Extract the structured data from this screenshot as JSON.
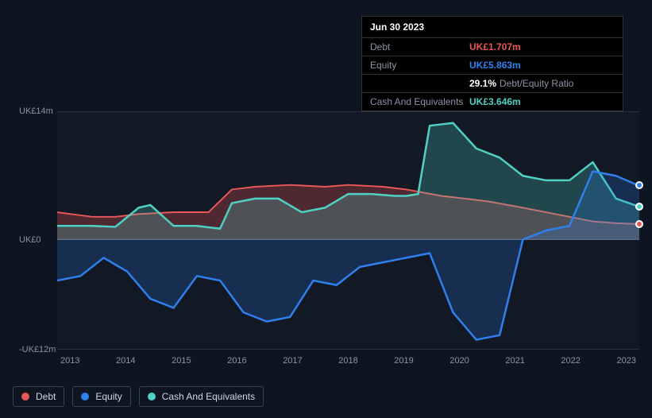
{
  "tooltip": {
    "date": "Jun 30 2023",
    "rows": [
      {
        "label": "Debt",
        "value": "UK£1.707m",
        "color": "#eb5757"
      },
      {
        "label": "Equity",
        "value": "UK£5.863m",
        "color": "#2f80ed"
      }
    ],
    "ratio": {
      "value": "29.1%",
      "label": "Debt/Equity Ratio"
    },
    "cash": {
      "label": "Cash And Equivalents",
      "value": "UK£3.646m",
      "color": "#4fd1c5"
    }
  },
  "chart": {
    "type": "area",
    "y_max": 14,
    "y_min": -12,
    "y_labels": [
      {
        "text": "UK£14m",
        "value": 14
      },
      {
        "text": "UK£0",
        "value": 0
      },
      {
        "text": "-UK£12m",
        "value": -12
      }
    ],
    "x_labels": [
      "2013",
      "2014",
      "2015",
      "2016",
      "2017",
      "2018",
      "2019",
      "2020",
      "2021",
      "2022",
      "2023"
    ],
    "plot_bg": "#141b2b",
    "grid_color": "#2a3244",
    "zero_line_color": "#5a6478",
    "label_color": "#8a94a6",
    "label_fontsize": 11,
    "series": {
      "debt": {
        "label": "Debt",
        "color": "#eb5757",
        "fill_opacity": 0.28,
        "stroke_width": 2,
        "data": [
          [
            0.0,
            3.0
          ],
          [
            0.06,
            2.5
          ],
          [
            0.1,
            2.5
          ],
          [
            0.14,
            2.8
          ],
          [
            0.2,
            3.0
          ],
          [
            0.26,
            3.0
          ],
          [
            0.3,
            5.5
          ],
          [
            0.34,
            5.8
          ],
          [
            0.4,
            6.0
          ],
          [
            0.46,
            5.8
          ],
          [
            0.5,
            6.0
          ],
          [
            0.56,
            5.8
          ],
          [
            0.6,
            5.5
          ],
          [
            0.66,
            4.8
          ],
          [
            0.7,
            4.5
          ],
          [
            0.74,
            4.2
          ],
          [
            0.8,
            3.5
          ],
          [
            0.84,
            3.0
          ],
          [
            0.88,
            2.5
          ],
          [
            0.92,
            2.0
          ],
          [
            0.96,
            1.8
          ],
          [
            1.0,
            1.7
          ]
        ],
        "marker_last": true
      },
      "equity": {
        "label": "Equity",
        "color": "#2f80ed",
        "fill_opacity": 0.22,
        "stroke_width": 2.5,
        "data": [
          [
            0.0,
            -4.5
          ],
          [
            0.04,
            -4.0
          ],
          [
            0.08,
            -2.0
          ],
          [
            0.12,
            -3.5
          ],
          [
            0.16,
            -6.5
          ],
          [
            0.2,
            -7.5
          ],
          [
            0.24,
            -4.0
          ],
          [
            0.28,
            -4.5
          ],
          [
            0.32,
            -8.0
          ],
          [
            0.36,
            -9.0
          ],
          [
            0.4,
            -8.5
          ],
          [
            0.44,
            -4.5
          ],
          [
            0.48,
            -5.0
          ],
          [
            0.52,
            -3.0
          ],
          [
            0.56,
            -2.5
          ],
          [
            0.6,
            -2.0
          ],
          [
            0.64,
            -1.5
          ],
          [
            0.68,
            -8.0
          ],
          [
            0.72,
            -11.0
          ],
          [
            0.76,
            -10.5
          ],
          [
            0.8,
            0.0
          ],
          [
            0.84,
            1.0
          ],
          [
            0.88,
            1.5
          ],
          [
            0.92,
            7.5
          ],
          [
            0.96,
            7.0
          ],
          [
            1.0,
            5.9
          ]
        ],
        "marker_last": true
      },
      "cash": {
        "label": "Cash And Equivalents",
        "color": "#4fd1c5",
        "fill_opacity": 0.25,
        "stroke_width": 2.5,
        "data": [
          [
            0.0,
            1.5
          ],
          [
            0.06,
            1.5
          ],
          [
            0.1,
            1.4
          ],
          [
            0.14,
            3.5
          ],
          [
            0.16,
            3.8
          ],
          [
            0.2,
            1.5
          ],
          [
            0.24,
            1.5
          ],
          [
            0.28,
            1.2
          ],
          [
            0.3,
            4.0
          ],
          [
            0.34,
            4.5
          ],
          [
            0.38,
            4.5
          ],
          [
            0.42,
            3.0
          ],
          [
            0.46,
            3.5
          ],
          [
            0.5,
            5.0
          ],
          [
            0.54,
            5.0
          ],
          [
            0.58,
            4.8
          ],
          [
            0.6,
            4.8
          ],
          [
            0.62,
            5.0
          ],
          [
            0.64,
            12.5
          ],
          [
            0.68,
            12.8
          ],
          [
            0.72,
            10.0
          ],
          [
            0.76,
            9.0
          ],
          [
            0.8,
            7.0
          ],
          [
            0.84,
            6.5
          ],
          [
            0.88,
            6.5
          ],
          [
            0.92,
            8.5
          ],
          [
            0.96,
            4.5
          ],
          [
            1.0,
            3.6
          ]
        ],
        "marker_last": true
      }
    }
  },
  "legend": [
    {
      "label": "Debt",
      "color": "#eb5757"
    },
    {
      "label": "Equity",
      "color": "#2f80ed"
    },
    {
      "label": "Cash And Equivalents",
      "color": "#4fd1c5"
    }
  ]
}
